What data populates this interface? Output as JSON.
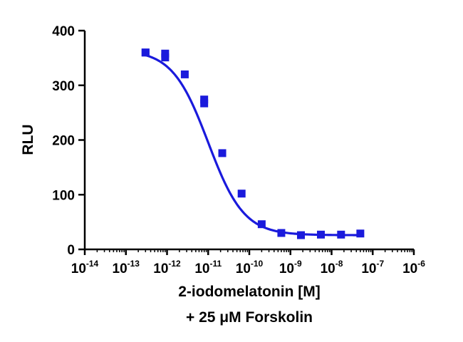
{
  "chart_data": {
    "type": "scatter",
    "title": "",
    "ylabel": "RLU",
    "xlabel": "2-iodomelatonin [M]",
    "xlabel_line2": "+ 25 μM Forskolin",
    "x_scale": "log",
    "xlim": [
      1e-14,
      1e-06
    ],
    "ylim": [
      0,
      400
    ],
    "x_tick_base": "10",
    "x_tick_exponents": [
      "-14",
      "-13",
      "-12",
      "-11",
      "-10",
      "-9",
      "-8",
      "-7",
      "-6"
    ],
    "y_ticks": [
      "0",
      "100",
      "200",
      "300",
      "400"
    ],
    "grid": false,
    "legend": "none",
    "marker": "square",
    "series": [
      {
        "color": "#1a1adc",
        "x": [
          3e-13,
          3e-13,
          9e-13,
          9e-13,
          2.7e-12,
          8e-12,
          8e-12,
          2.2e-11,
          6.5e-11,
          2e-10,
          6e-10,
          1.8e-09,
          5.5e-09,
          1.7e-08,
          5e-08
        ],
        "y": [
          360,
          360,
          358,
          351,
          320,
          274,
          267,
          176,
          102,
          46,
          30,
          26,
          27,
          27,
          29
        ]
      }
    ],
    "fit_curve": {
      "type": "sigmoidal dose-response",
      "color": "#1a1adc",
      "top": 365,
      "bottom": 26,
      "log_ec50": -11.0,
      "hill_slope": -1.0
    }
  }
}
